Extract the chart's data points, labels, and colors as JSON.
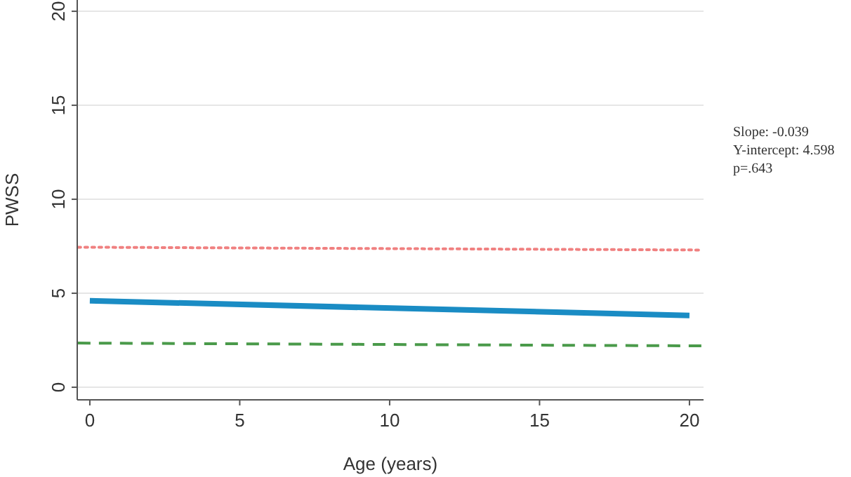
{
  "chart_data": {
    "type": "line",
    "xlabel": "Age (years)",
    "ylabel": "PWSS",
    "xlim": [
      -0.42,
      20.47
    ],
    "ylim": [
      -0.67,
      20.6
    ],
    "xticks": [
      0,
      5,
      10,
      15,
      20
    ],
    "yticks": [
      0,
      5,
      10,
      15,
      20
    ],
    "grid": "y",
    "marker": "none",
    "series": [
      {
        "color": "#f08080",
        "line_style": "dotted",
        "x": [
          -0.4,
          20.4
        ],
        "values": [
          7.45,
          7.3
        ]
      },
      {
        "color": "#4a9a4a",
        "line_style": "dashed",
        "x": [
          -0.4,
          20.4
        ],
        "values": [
          2.35,
          2.2
        ]
      },
      {
        "color": "#1a8cc4",
        "line_style": "solid",
        "x": [
          0,
          20
        ],
        "values": [
          4.6,
          3.82
        ]
      }
    ],
    "annotations": [
      "Slope: -0.039",
      "Y-intercept: 4.598",
      "p=.643"
    ]
  }
}
